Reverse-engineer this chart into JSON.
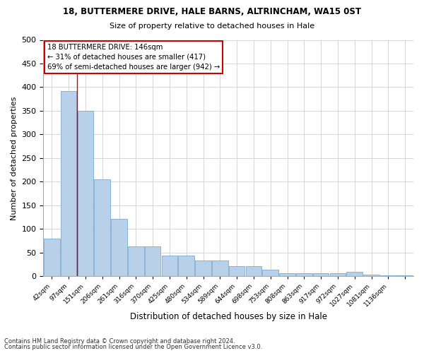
{
  "title_line1": "18, BUTTERMERE DRIVE, HALE BARNS, ALTRINCHAM, WA15 0ST",
  "title_line2": "Size of property relative to detached houses in Hale",
  "xlabel": "Distribution of detached houses by size in Hale",
  "ylabel": "Number of detached properties",
  "bar_values": [
    79,
    392,
    350,
    205,
    122,
    63,
    63,
    44,
    44,
    33,
    33,
    22,
    22,
    14,
    7,
    7,
    7,
    7,
    10,
    3,
    2,
    2
  ],
  "bar_labels": [
    "42sqm",
    "97sqm",
    "151sqm",
    "206sqm",
    "261sqm",
    "316sqm",
    "370sqm",
    "425sqm",
    "480sqm",
    "534sqm",
    "589sqm",
    "644sqm",
    "698sqm",
    "753sqm",
    "808sqm",
    "863sqm",
    "917sqm",
    "972sqm",
    "1027sqm",
    "1081sqm",
    "1136sqm",
    ""
  ],
  "bar_color": "#b8d0e8",
  "bar_edge_color": "#6a9fc8",
  "background_color": "#ffffff",
  "grid_color": "#d0d0d0",
  "vline_color": "#cc0000",
  "vline_x": 1.5,
  "annotation_text": "18 BUTTERMERE DRIVE: 146sqm\n← 31% of detached houses are smaller (417)\n69% of semi-detached houses are larger (942) →",
  "annotation_box_color": "#ffffff",
  "annotation_box_edge_color": "#cc0000",
  "ylim": [
    0,
    500
  ],
  "yticks": [
    0,
    50,
    100,
    150,
    200,
    250,
    300,
    350,
    400,
    450,
    500
  ],
  "footer_line1": "Contains HM Land Registry data © Crown copyright and database right 2024.",
  "footer_line2": "Contains public sector information licensed under the Open Government Licence v3.0."
}
